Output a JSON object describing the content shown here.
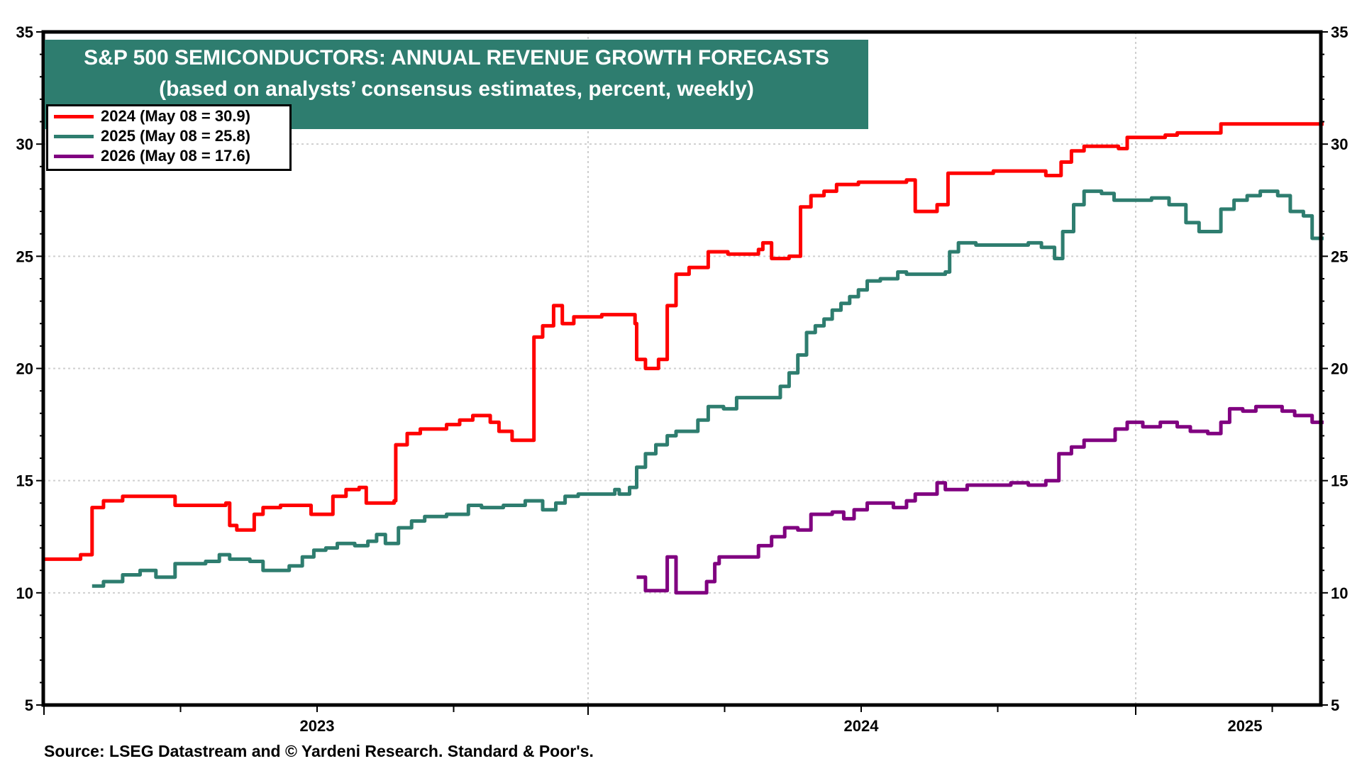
{
  "chart_data": {
    "type": "line",
    "title": "S&P 500 SEMICONDUCTORS: ANNUAL REVENUE GROWTH FORECASTS",
    "subtitle": "(based on analysts’ consensus estimates, percent, weekly)",
    "xlabel": "",
    "ylabel": "",
    "ylim": [
      5,
      35
    ],
    "yticks": [
      5,
      10,
      15,
      20,
      25,
      30,
      35
    ],
    "ytick_labels": [
      "5",
      "10",
      "15",
      "20",
      "25",
      "30",
      "35"
    ],
    "xlim": [
      2023.0,
      2025.37
    ],
    "xtick_labels": [
      {
        "label": "2023",
        "at": 2023.5
      },
      {
        "label": "2024",
        "at": 2024.5
      },
      {
        "label": "2025",
        "at": 2025.2
      }
    ],
    "grid": true,
    "legend_position": "top-left",
    "x_unit": "fractional year",
    "series": [
      {
        "name": "2024 (May 08 = 30.9)",
        "color": "#ff0000",
        "step": true,
        "points": [
          [
            2023.0,
            11.5
          ],
          [
            2023.067,
            11.7
          ],
          [
            2023.088,
            13.8
          ],
          [
            2023.109,
            14.1
          ],
          [
            2023.144,
            14.3
          ],
          [
            2023.24,
            13.9
          ],
          [
            2023.333,
            14.0
          ],
          [
            2023.34,
            13.0
          ],
          [
            2023.353,
            12.8
          ],
          [
            2023.385,
            13.5
          ],
          [
            2023.401,
            13.8
          ],
          [
            2023.433,
            13.9
          ],
          [
            2023.489,
            13.5
          ],
          [
            2023.529,
            14.3
          ],
          [
            2023.553,
            14.6
          ],
          [
            2023.577,
            14.7
          ],
          [
            2023.59,
            14.0
          ],
          [
            2023.641,
            14.1
          ],
          [
            2023.644,
            16.6
          ],
          [
            2023.665,
            17.1
          ],
          [
            2023.689,
            17.3
          ],
          [
            2023.737,
            17.5
          ],
          [
            2023.761,
            17.7
          ],
          [
            2023.785,
            17.9
          ],
          [
            2023.817,
            17.6
          ],
          [
            2023.833,
            17.2
          ],
          [
            2023.857,
            16.8
          ],
          [
            2023.897,
            16.8
          ],
          [
            2023.897,
            21.4
          ],
          [
            2023.913,
            21.9
          ],
          [
            2023.933,
            22.8
          ],
          [
            2023.949,
            22.0
          ],
          [
            2023.97,
            22.3
          ],
          [
            2024.025,
            22.4
          ],
          [
            2024.086,
            22.0
          ],
          [
            2024.089,
            20.4
          ],
          [
            2024.105,
            20.0
          ],
          [
            2024.129,
            20.4
          ],
          [
            2024.145,
            22.8
          ],
          [
            2024.161,
            24.2
          ],
          [
            2024.185,
            24.5
          ],
          [
            2024.22,
            25.2
          ],
          [
            2024.256,
            25.1
          ],
          [
            2024.312,
            25.3
          ],
          [
            2024.32,
            25.6
          ],
          [
            2024.336,
            24.9
          ],
          [
            2024.368,
            25.0
          ],
          [
            2024.389,
            27.2
          ],
          [
            2024.408,
            27.7
          ],
          [
            2024.432,
            27.9
          ],
          [
            2024.455,
            28.2
          ],
          [
            2024.495,
            28.3
          ],
          [
            2024.583,
            28.4
          ],
          [
            2024.599,
            27.0
          ],
          [
            2024.639,
            27.3
          ],
          [
            2024.659,
            28.7
          ],
          [
            2024.71,
            28.7
          ],
          [
            2024.742,
            28.8
          ],
          [
            2024.814,
            28.8
          ],
          [
            2024.838,
            28.6
          ],
          [
            2024.866,
            29.2
          ],
          [
            2024.885,
            29.7
          ],
          [
            2024.908,
            29.9
          ],
          [
            2024.971,
            29.8
          ],
          [
            2024.987,
            30.3
          ],
          [
            2025.054,
            30.4
          ],
          [
            2025.076,
            30.5
          ],
          [
            2025.108,
            30.5
          ],
          [
            2025.156,
            30.9
          ],
          [
            2025.344,
            30.9
          ]
        ]
      },
      {
        "name": "2025 (May 08 = 25.8)",
        "color": "#2e7d6f",
        "step": true,
        "points": [
          [
            2023.088,
            10.3
          ],
          [
            2023.109,
            10.5
          ],
          [
            2023.144,
            10.8
          ],
          [
            2023.176,
            11.0
          ],
          [
            2023.205,
            10.7
          ],
          [
            2023.24,
            11.3
          ],
          [
            2023.296,
            11.4
          ],
          [
            2023.321,
            11.7
          ],
          [
            2023.34,
            11.5
          ],
          [
            2023.377,
            11.4
          ],
          [
            2023.401,
            11.0
          ],
          [
            2023.433,
            11.0
          ],
          [
            2023.449,
            11.2
          ],
          [
            2023.473,
            11.6
          ],
          [
            2023.494,
            11.9
          ],
          [
            2023.516,
            12.0
          ],
          [
            2023.537,
            12.2
          ],
          [
            2023.569,
            12.1
          ],
          [
            2023.593,
            12.3
          ],
          [
            2023.609,
            12.6
          ],
          [
            2023.625,
            12.2
          ],
          [
            2023.649,
            12.9
          ],
          [
            2023.673,
            13.2
          ],
          [
            2023.697,
            13.4
          ],
          [
            2023.737,
            13.5
          ],
          [
            2023.777,
            13.9
          ],
          [
            2023.801,
            13.8
          ],
          [
            2023.841,
            13.9
          ],
          [
            2023.881,
            14.1
          ],
          [
            2023.913,
            13.7
          ],
          [
            2023.937,
            14.0
          ],
          [
            2023.954,
            14.3
          ],
          [
            2023.978,
            14.4
          ],
          [
            2024.033,
            14.4
          ],
          [
            2024.049,
            14.6
          ],
          [
            2024.057,
            14.4
          ],
          [
            2024.076,
            14.7
          ],
          [
            2024.089,
            15.6
          ],
          [
            2024.105,
            16.2
          ],
          [
            2024.124,
            16.6
          ],
          [
            2024.145,
            17.0
          ],
          [
            2024.161,
            17.2
          ],
          [
            2024.201,
            17.7
          ],
          [
            2024.22,
            18.3
          ],
          [
            2024.248,
            18.2
          ],
          [
            2024.272,
            18.7
          ],
          [
            2024.328,
            18.7
          ],
          [
            2024.352,
            19.2
          ],
          [
            2024.368,
            19.8
          ],
          [
            2024.384,
            20.6
          ],
          [
            2024.4,
            21.6
          ],
          [
            2024.416,
            21.9
          ],
          [
            2024.432,
            22.2
          ],
          [
            2024.447,
            22.6
          ],
          [
            2024.463,
            22.9
          ],
          [
            2024.479,
            23.2
          ],
          [
            2024.495,
            23.5
          ],
          [
            2024.511,
            23.9
          ],
          [
            2024.535,
            24.0
          ],
          [
            2024.567,
            24.3
          ],
          [
            2024.583,
            24.2
          ],
          [
            2024.654,
            24.3
          ],
          [
            2024.662,
            25.2
          ],
          [
            2024.678,
            25.6
          ],
          [
            2024.71,
            25.5
          ],
          [
            2024.806,
            25.6
          ],
          [
            2024.83,
            25.4
          ],
          [
            2024.854,
            24.9
          ],
          [
            2024.869,
            26.1
          ],
          [
            2024.889,
            27.3
          ],
          [
            2024.908,
            27.9
          ],
          [
            2024.94,
            27.8
          ],
          [
            2024.963,
            27.5
          ],
          [
            2025.029,
            27.6
          ],
          [
            2025.061,
            27.3
          ],
          [
            2025.092,
            26.5
          ],
          [
            2025.116,
            26.1
          ],
          [
            2025.156,
            27.1
          ],
          [
            2025.18,
            27.5
          ],
          [
            2025.204,
            27.7
          ],
          [
            2025.228,
            27.9
          ],
          [
            2025.26,
            27.7
          ],
          [
            2025.283,
            27.0
          ],
          [
            2025.307,
            26.8
          ],
          [
            2025.323,
            25.8
          ],
          [
            2025.344,
            25.8
          ]
        ]
      },
      {
        "name": "2026 (May 08 = 17.6)",
        "color": "#800080",
        "step": true,
        "points": [
          [
            2024.089,
            10.7
          ],
          [
            2024.105,
            10.1
          ],
          [
            2024.137,
            10.1
          ],
          [
            2024.145,
            11.6
          ],
          [
            2024.161,
            10.0
          ],
          [
            2024.201,
            10.0
          ],
          [
            2024.217,
            10.5
          ],
          [
            2024.232,
            11.3
          ],
          [
            2024.24,
            11.6
          ],
          [
            2024.296,
            11.6
          ],
          [
            2024.312,
            12.1
          ],
          [
            2024.336,
            12.5
          ],
          [
            2024.36,
            12.9
          ],
          [
            2024.384,
            12.8
          ],
          [
            2024.408,
            13.5
          ],
          [
            2024.447,
            13.6
          ],
          [
            2024.468,
            13.3
          ],
          [
            2024.487,
            13.7
          ],
          [
            2024.511,
            14.0
          ],
          [
            2024.559,
            13.8
          ],
          [
            2024.583,
            14.1
          ],
          [
            2024.599,
            14.4
          ],
          [
            2024.639,
            14.9
          ],
          [
            2024.654,
            14.6
          ],
          [
            2024.694,
            14.8
          ],
          [
            2024.774,
            14.9
          ],
          [
            2024.806,
            14.8
          ],
          [
            2024.838,
            15.0
          ],
          [
            2024.862,
            16.2
          ],
          [
            2024.885,
            16.5
          ],
          [
            2024.908,
            16.8
          ],
          [
            2024.965,
            17.3
          ],
          [
            2024.987,
            17.6
          ],
          [
            2025.013,
            17.4
          ],
          [
            2025.045,
            17.6
          ],
          [
            2025.076,
            17.4
          ],
          [
            2025.1,
            17.2
          ],
          [
            2025.132,
            17.1
          ],
          [
            2025.156,
            17.6
          ],
          [
            2025.172,
            18.2
          ],
          [
            2025.196,
            18.1
          ],
          [
            2025.22,
            18.3
          ],
          [
            2025.252,
            18.3
          ],
          [
            2025.268,
            18.1
          ],
          [
            2025.291,
            17.9
          ],
          [
            2025.323,
            17.6
          ],
          [
            2025.344,
            17.6
          ]
        ]
      }
    ]
  },
  "banner": {
    "title": "S&P 500 SEMICONDUCTORS: ANNUAL REVENUE GROWTH FORECASTS",
    "subtitle": "(based on analysts’ consensus estimates, percent, weekly)",
    "color": "#2e7d6f"
  },
  "legend": [
    {
      "label": "2024 (May 08 = 30.9)",
      "color": "#ff0000"
    },
    {
      "label": "2025 (May 08 = 25.8)",
      "color": "#2e7d6f"
    },
    {
      "label": "2026 (May 08 = 17.6)",
      "color": "#800080"
    }
  ],
  "source": "Source: LSEG Datastream and © Yardeni Research. Standard & Poor's."
}
